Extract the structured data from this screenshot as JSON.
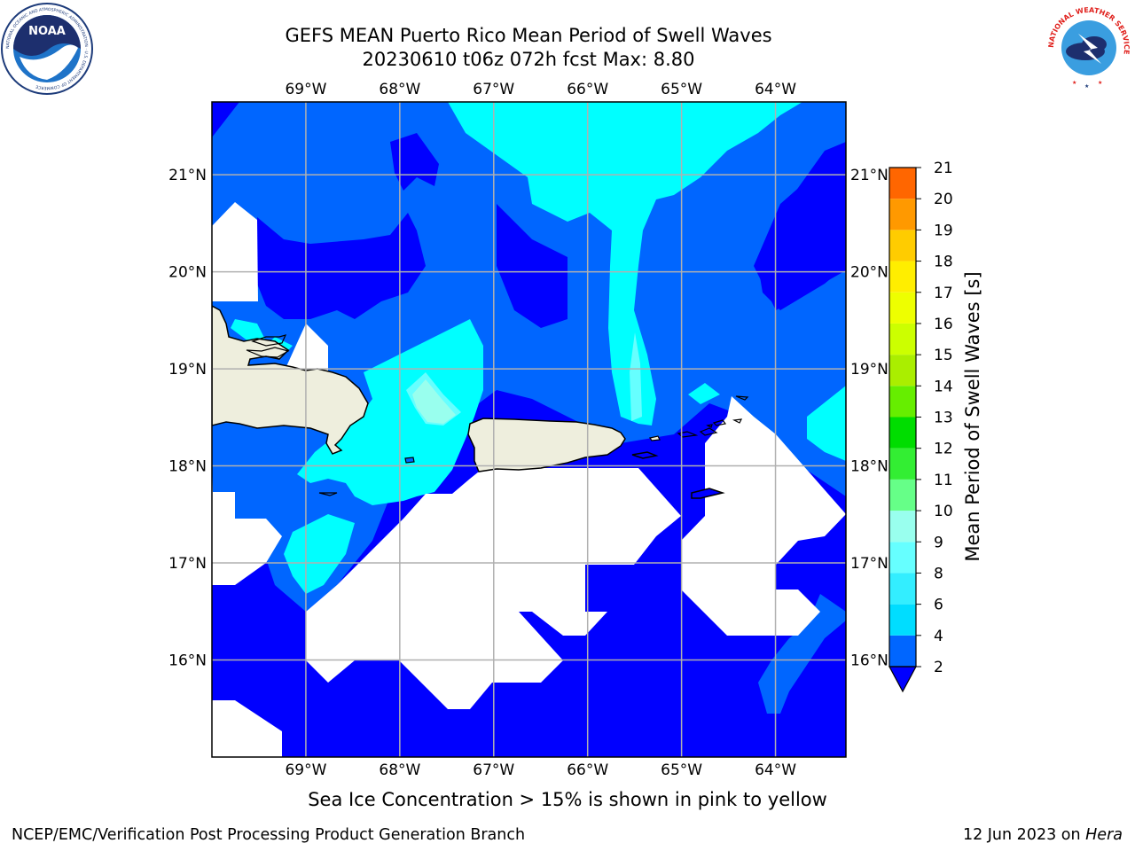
{
  "header": {
    "title_line1": "GEFS MEAN Puerto Rico Mean Period of Swell Waves",
    "title_line2": "20230610 t06z 072h fcst   Max: 8.80"
  },
  "logos": {
    "left": "NOAA",
    "left_ring_text": "NATIONAL OCEANIC AND ATMOSPHERIC ADMINISTRATION · U.S. DEPARTMENT OF COMMERCE",
    "right_ring_text": "NATIONAL WEATHER SERVICE"
  },
  "map": {
    "lon_labels": [
      "69°W",
      "68°W",
      "67°W",
      "66°W",
      "65°W",
      "64°W"
    ],
    "lat_labels": [
      "21°N",
      "20°N",
      "19°N",
      "18°N",
      "17°N",
      "16°N"
    ],
    "lon_values": [
      -69,
      -68,
      -67,
      -66,
      -65,
      -64
    ],
    "lat_values": [
      21,
      20,
      19,
      18,
      17,
      16
    ],
    "extent": {
      "lon_min": -70,
      "lon_max": -63.25,
      "lat_min": 15,
      "lat_max": 21.75
    },
    "grid": true
  },
  "colorbar": {
    "label": "Mean Period of Swell Waves [s]",
    "ticks": [
      "21",
      "20",
      "19",
      "18",
      "17",
      "16",
      "15",
      "14",
      "13",
      "12",
      "11",
      "10",
      "9",
      "8",
      "6",
      "4",
      "2"
    ],
    "levels": [
      2,
      4,
      6,
      8,
      9,
      10,
      11,
      12,
      13,
      14,
      15,
      16,
      17,
      18,
      19,
      20,
      21
    ],
    "colors": [
      "#0066ff",
      "#00ddff",
      "#33eeff",
      "#66ffff",
      "#99ffee",
      "#66ff88",
      "#33ee33",
      "#00dd00",
      "#66ee00",
      "#aaee00",
      "#ccff00",
      "#eeff00",
      "#ffee00",
      "#ffcc00",
      "#ff9900",
      "#ff6600",
      "#ff3300",
      "#ff0000"
    ],
    "extend": "min"
  },
  "fills": {
    "below_2": "#0000ff",
    "band_2_4": "#0066ff",
    "band_4_6": "#00ddff",
    "band_6_8": "#66ffff",
    "band_8_9": "#99ffee",
    "land": "#eeeedd",
    "no_data": "#ffffff"
  },
  "footer": {
    "note": "Sea Ice Concentration > 15% is shown in pink to yellow",
    "left": "NCEP/EMC/Verification Post Processing Product Generation Branch",
    "right_date": "12 Jun 2023 on ",
    "right_machine": "Hera"
  }
}
